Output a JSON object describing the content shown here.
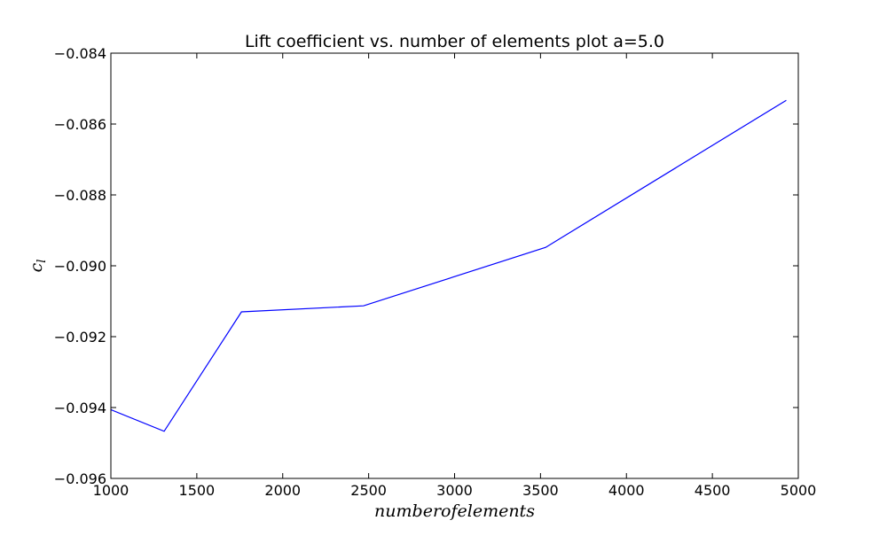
{
  "chart_data": {
    "type": "line",
    "title": "Lift coefficient vs. number of elements plot a=5.0",
    "xlabel": "numberofelements",
    "ylabel": "c_l",
    "ylabel_main": "c",
    "ylabel_sub": "l",
    "xlim": [
      1000,
      5000
    ],
    "ylim": [
      -0.096,
      -0.084
    ],
    "xticks": [
      1000,
      1500,
      2000,
      2500,
      3000,
      3500,
      4000,
      4500,
      5000
    ],
    "xtick_labels": [
      "1000",
      "1500",
      "2000",
      "2500",
      "3000",
      "3500",
      "4000",
      "4500",
      "5000"
    ],
    "yticks": [
      -0.084,
      -0.086,
      -0.088,
      -0.09,
      -0.092,
      -0.094,
      -0.096
    ],
    "ytick_labels": [
      "−0.084",
      "−0.086",
      "−0.088",
      "−0.090",
      "−0.092",
      "−0.094",
      "−0.096"
    ],
    "grid": false,
    "series": [
      {
        "color": "#0000ff",
        "x": [
          1000,
          1310,
          1760,
          2470,
          3530,
          4930
        ],
        "y": [
          -0.09406,
          -0.09467,
          -0.0913,
          -0.09113,
          -0.08948,
          -0.08533
        ]
      }
    ]
  }
}
